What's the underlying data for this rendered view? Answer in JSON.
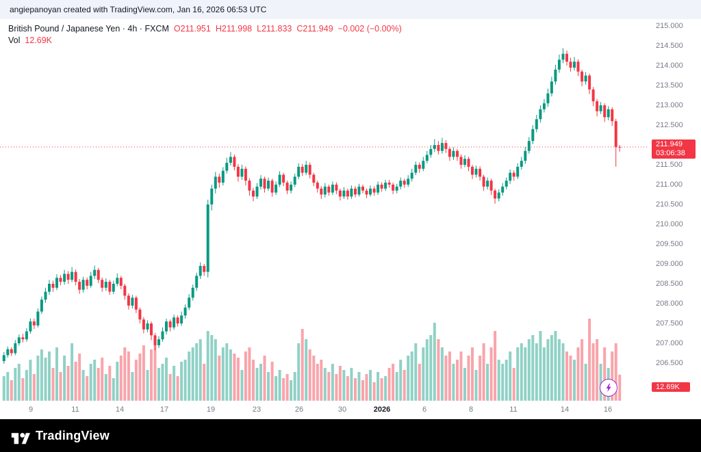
{
  "attribution": {
    "text": "angiepanoyan created with TradingView.com, Jan 16, 2026 06:53 UTC"
  },
  "legend": {
    "symbol_line": "British Pound / Japanese Yen · 4h · FXCM",
    "ohlc": {
      "o": "O211.951",
      "h": "H211.998",
      "l": "L211.833",
      "c": "C211.949",
      "change": "−0.002 (−0.00%)"
    },
    "vol_label": "Vol",
    "vol_value": "12.69K"
  },
  "badges": {
    "last_price": "211.949",
    "countdown": "03:06:38",
    "volume": "12.69K"
  },
  "footer": {
    "brand": "TradingView"
  },
  "colors": {
    "up": "#089981",
    "down": "#f23645",
    "up_vol": "rgba(8,153,129,0.45)",
    "down_vol": "rgba(242,54,69,0.45)",
    "axis_text": "#787b86",
    "badge_bg": "#f23645",
    "lightning": "#a724d1"
  },
  "price_axis": [
    "215.000",
    "214.500",
    "214.000",
    "213.500",
    "213.000",
    "212.500",
    "212.000",
    "211.500",
    "211.000",
    "210.500",
    "210.000",
    "209.500",
    "209.000",
    "208.500",
    "208.000",
    "207.500",
    "207.000",
    "206.500"
  ],
  "time_axis": [
    {
      "label": "9",
      "f": 0.048
    },
    {
      "label": "11",
      "f": 0.116
    },
    {
      "label": "14",
      "f": 0.185
    },
    {
      "label": "17",
      "f": 0.254
    },
    {
      "label": "19",
      "f": 0.326
    },
    {
      "label": "23",
      "f": 0.396
    },
    {
      "label": "26",
      "f": 0.462
    },
    {
      "label": "30",
      "f": 0.529
    },
    {
      "label": "2026",
      "f": 0.59,
      "bold": true
    },
    {
      "label": "6",
      "f": 0.655
    },
    {
      "label": "8",
      "f": 0.727
    },
    {
      "label": "11",
      "f": 0.793
    },
    {
      "label": "14",
      "f": 0.872
    },
    {
      "label": "16",
      "f": 0.939
    }
  ],
  "chart_data": {
    "type": "candlestick",
    "title": "British Pound / Japanese Yen",
    "interval": "4h",
    "exchange": "FXCM",
    "last_price": 211.949,
    "open": 211.951,
    "high": 211.998,
    "low": 211.833,
    "close": 211.949,
    "change": -0.002,
    "change_pct": -0.0,
    "volume_last": 12.69,
    "ylim": [
      206.5,
      215.0
    ],
    "x_span": "Dec 8 2025 – Jan 16 2026, 4-hour candles",
    "candles_format": [
      "open",
      "high",
      "low",
      "close",
      "volume_k"
    ],
    "candles": [
      [
        206.55,
        206.78,
        206.48,
        206.7,
        12
      ],
      [
        206.7,
        206.92,
        206.64,
        206.85,
        14
      ],
      [
        206.85,
        206.9,
        206.68,
        206.75,
        10
      ],
      [
        206.75,
        207.08,
        206.7,
        207.0,
        16
      ],
      [
        207.0,
        207.22,
        206.94,
        207.15,
        18
      ],
      [
        207.15,
        207.24,
        207.02,
        207.1,
        11
      ],
      [
        207.1,
        207.38,
        207.04,
        207.3,
        15
      ],
      [
        207.3,
        207.63,
        207.24,
        207.55,
        20
      ],
      [
        207.55,
        207.62,
        207.36,
        207.45,
        13
      ],
      [
        207.45,
        207.88,
        207.4,
        207.8,
        22
      ],
      [
        207.8,
        208.18,
        207.74,
        208.1,
        25
      ],
      [
        208.1,
        208.4,
        208.02,
        208.3,
        21
      ],
      [
        208.3,
        208.6,
        208.22,
        208.5,
        24
      ],
      [
        208.5,
        208.58,
        208.3,
        208.4,
        16
      ],
      [
        208.4,
        208.74,
        208.34,
        208.65,
        26
      ],
      [
        208.65,
        208.72,
        208.46,
        208.55,
        14
      ],
      [
        208.55,
        208.85,
        208.48,
        208.75,
        22
      ],
      [
        208.75,
        208.82,
        208.5,
        208.6,
        17
      ],
      [
        208.6,
        208.92,
        208.54,
        208.8,
        28
      ],
      [
        208.8,
        208.86,
        208.46,
        208.55,
        19
      ],
      [
        208.55,
        208.62,
        208.25,
        208.35,
        23
      ],
      [
        208.35,
        208.68,
        208.28,
        208.6,
        15
      ],
      [
        208.6,
        208.66,
        208.36,
        208.45,
        12
      ],
      [
        208.45,
        208.8,
        208.4,
        208.7,
        18
      ],
      [
        208.7,
        208.96,
        208.62,
        208.85,
        20
      ],
      [
        208.85,
        208.9,
        208.52,
        208.6,
        16
      ],
      [
        208.6,
        208.66,
        208.3,
        208.4,
        21
      ],
      [
        208.4,
        208.64,
        208.32,
        208.55,
        13
      ],
      [
        208.55,
        208.6,
        208.22,
        208.3,
        17
      ],
      [
        208.3,
        208.58,
        208.24,
        208.5,
        11
      ],
      [
        208.5,
        208.76,
        208.44,
        208.65,
        19
      ],
      [
        208.65,
        208.7,
        208.36,
        208.45,
        22
      ],
      [
        208.45,
        208.5,
        208.1,
        208.2,
        26
      ],
      [
        208.2,
        208.26,
        207.85,
        207.95,
        24
      ],
      [
        207.95,
        208.22,
        207.88,
        208.15,
        14
      ],
      [
        208.15,
        208.2,
        207.76,
        207.85,
        20
      ],
      [
        207.85,
        207.9,
        207.5,
        207.6,
        23
      ],
      [
        207.6,
        207.66,
        207.25,
        207.35,
        27
      ],
      [
        207.35,
        207.58,
        207.28,
        207.5,
        15
      ],
      [
        207.5,
        207.55,
        207.08,
        207.2,
        25
      ],
      [
        207.2,
        207.26,
        206.82,
        206.95,
        29
      ],
      [
        206.95,
        207.18,
        206.88,
        207.1,
        16
      ],
      [
        207.1,
        207.4,
        207.04,
        207.3,
        18
      ],
      [
        207.3,
        207.62,
        207.22,
        207.55,
        21
      ],
      [
        207.55,
        207.6,
        207.3,
        207.4,
        13
      ],
      [
        207.4,
        207.72,
        207.34,
        207.65,
        17
      ],
      [
        207.65,
        207.7,
        207.42,
        207.5,
        12
      ],
      [
        207.5,
        207.8,
        207.44,
        207.7,
        19
      ],
      [
        207.7,
        207.98,
        207.62,
        207.9,
        20
      ],
      [
        207.9,
        208.24,
        207.84,
        208.15,
        24
      ],
      [
        208.15,
        208.48,
        208.08,
        208.4,
        26
      ],
      [
        208.4,
        208.78,
        208.32,
        208.7,
        28
      ],
      [
        208.7,
        209.04,
        208.62,
        208.95,
        30
      ],
      [
        208.95,
        209.0,
        208.7,
        208.8,
        18
      ],
      [
        208.8,
        210.62,
        208.66,
        210.5,
        34
      ],
      [
        210.5,
        211.0,
        210.35,
        210.9,
        32
      ],
      [
        210.9,
        211.32,
        210.78,
        211.2,
        30
      ],
      [
        211.2,
        211.28,
        210.92,
        211.05,
        22
      ],
      [
        211.05,
        211.44,
        210.98,
        211.35,
        26
      ],
      [
        211.35,
        211.68,
        211.28,
        211.55,
        28
      ],
      [
        211.55,
        211.82,
        211.48,
        211.7,
        25
      ],
      [
        211.7,
        211.76,
        211.36,
        211.45,
        23
      ],
      [
        211.45,
        211.52,
        211.08,
        211.2,
        21
      ],
      [
        211.2,
        211.5,
        211.12,
        211.4,
        15
      ],
      [
        211.4,
        211.46,
        210.98,
        211.1,
        24
      ],
      [
        211.1,
        211.16,
        210.72,
        210.85,
        26
      ],
      [
        210.85,
        210.92,
        210.58,
        210.7,
        20
      ],
      [
        210.7,
        211.04,
        210.64,
        210.95,
        16
      ],
      [
        210.95,
        211.24,
        210.88,
        211.15,
        18
      ],
      [
        211.15,
        211.2,
        210.8,
        210.9,
        22
      ],
      [
        210.9,
        211.18,
        210.84,
        211.1,
        14
      ],
      [
        211.1,
        211.15,
        210.7,
        210.8,
        19
      ],
      [
        210.8,
        211.08,
        210.74,
        211.0,
        12
      ],
      [
        211.0,
        211.34,
        210.94,
        211.25,
        15
      ],
      [
        211.25,
        211.3,
        210.96,
        211.05,
        11
      ],
      [
        211.05,
        211.1,
        210.76,
        210.85,
        13
      ],
      [
        210.85,
        211.08,
        210.78,
        211.0,
        10
      ],
      [
        211.0,
        211.28,
        210.94,
        211.2,
        14
      ],
      [
        211.2,
        211.54,
        211.14,
        211.45,
        28
      ],
      [
        211.45,
        211.52,
        211.22,
        211.3,
        35
      ],
      [
        211.3,
        211.6,
        211.24,
        211.5,
        30
      ],
      [
        211.5,
        211.56,
        211.16,
        211.25,
        25
      ],
      [
        211.25,
        211.3,
        210.96,
        211.05,
        22
      ],
      [
        211.05,
        211.1,
        210.8,
        210.9,
        18
      ],
      [
        210.9,
        210.96,
        210.64,
        210.75,
        20
      ],
      [
        210.75,
        211.04,
        210.68,
        210.95,
        16
      ],
      [
        210.95,
        211.0,
        210.72,
        210.8,
        14
      ],
      [
        210.8,
        211.08,
        210.74,
        211.0,
        18
      ],
      [
        211.0,
        211.06,
        210.76,
        210.85,
        13
      ],
      [
        210.85,
        210.9,
        210.6,
        210.7,
        17
      ],
      [
        210.7,
        210.94,
        210.64,
        210.85,
        15
      ],
      [
        210.85,
        210.9,
        210.62,
        210.7,
        12
      ],
      [
        210.7,
        210.98,
        210.64,
        210.9,
        16
      ],
      [
        210.9,
        210.96,
        210.68,
        210.75,
        11
      ],
      [
        210.75,
        211.02,
        210.7,
        210.95,
        14
      ],
      [
        210.95,
        211.0,
        210.78,
        210.85,
        10
      ],
      [
        210.85,
        210.9,
        210.66,
        210.75,
        13
      ],
      [
        210.75,
        210.98,
        210.7,
        210.9,
        15
      ],
      [
        210.9,
        210.96,
        210.72,
        210.8,
        9
      ],
      [
        210.8,
        211.08,
        210.74,
        211.0,
        14
      ],
      [
        211.0,
        211.06,
        210.82,
        210.9,
        11
      ],
      [
        210.9,
        211.12,
        210.84,
        211.05,
        12
      ],
      [
        211.05,
        211.12,
        210.92,
        211.0,
        16
      ],
      [
        211.0,
        211.05,
        210.76,
        210.85,
        18
      ],
      [
        210.85,
        211.02,
        210.78,
        210.95,
        14
      ],
      [
        210.95,
        211.18,
        210.88,
        211.1,
        20
      ],
      [
        211.1,
        211.15,
        210.92,
        211.0,
        15
      ],
      [
        211.0,
        211.24,
        210.94,
        211.15,
        22
      ],
      [
        211.15,
        211.4,
        211.08,
        211.3,
        24
      ],
      [
        211.3,
        211.58,
        211.24,
        211.5,
        28
      ],
      [
        211.5,
        211.56,
        211.3,
        211.4,
        18
      ],
      [
        211.4,
        211.7,
        211.34,
        211.6,
        26
      ],
      [
        211.6,
        211.85,
        211.54,
        211.75,
        30
      ],
      [
        211.75,
        212.0,
        211.68,
        211.9,
        32
      ],
      [
        211.9,
        212.15,
        211.82,
        212.0,
        38
      ],
      [
        212.0,
        212.1,
        211.76,
        211.85,
        30
      ],
      [
        211.85,
        212.18,
        211.78,
        212.05,
        26
      ],
      [
        212.05,
        212.12,
        211.8,
        211.9,
        22
      ],
      [
        211.9,
        211.95,
        211.6,
        211.7,
        24
      ],
      [
        211.7,
        211.94,
        211.62,
        211.85,
        18
      ],
      [
        211.85,
        211.9,
        211.6,
        211.7,
        20
      ],
      [
        211.7,
        211.76,
        211.4,
        211.5,
        24
      ],
      [
        211.5,
        211.74,
        211.44,
        211.65,
        16
      ],
      [
        211.65,
        211.7,
        211.34,
        211.45,
        22
      ],
      [
        211.45,
        211.5,
        211.14,
        211.25,
        26
      ],
      [
        211.25,
        211.48,
        211.18,
        211.4,
        15
      ],
      [
        211.4,
        211.46,
        211.1,
        211.2,
        22
      ],
      [
        211.2,
        211.25,
        210.84,
        210.95,
        28
      ],
      [
        210.95,
        211.18,
        210.88,
        211.1,
        18
      ],
      [
        211.1,
        211.15,
        210.74,
        210.85,
        26
      ],
      [
        210.85,
        210.9,
        210.52,
        210.65,
        34
      ],
      [
        210.65,
        210.88,
        210.58,
        210.8,
        20
      ],
      [
        210.8,
        211.04,
        210.72,
        210.95,
        18
      ],
      [
        210.95,
        211.18,
        210.88,
        211.1,
        20
      ],
      [
        211.1,
        211.38,
        211.02,
        211.3,
        24
      ],
      [
        211.3,
        211.36,
        211.1,
        211.2,
        16
      ],
      [
        211.2,
        211.54,
        211.14,
        211.45,
        26
      ],
      [
        211.45,
        211.7,
        211.38,
        211.6,
        28
      ],
      [
        211.6,
        211.95,
        211.52,
        211.85,
        26
      ],
      [
        211.85,
        212.2,
        211.78,
        212.1,
        30
      ],
      [
        212.1,
        212.5,
        212.02,
        212.4,
        32
      ],
      [
        212.4,
        212.76,
        212.32,
        212.65,
        28
      ],
      [
        212.65,
        213.0,
        212.56,
        212.9,
        34
      ],
      [
        212.9,
        213.16,
        212.82,
        213.05,
        26
      ],
      [
        213.05,
        213.42,
        212.96,
        213.3,
        30
      ],
      [
        213.3,
        213.72,
        213.22,
        213.6,
        32
      ],
      [
        213.6,
        214.02,
        213.52,
        213.9,
        34
      ],
      [
        213.9,
        214.28,
        213.82,
        214.15,
        30
      ],
      [
        214.15,
        214.44,
        214.06,
        214.3,
        28
      ],
      [
        214.3,
        214.38,
        214.0,
        214.1,
        24
      ],
      [
        214.1,
        214.2,
        213.85,
        213.95,
        22
      ],
      [
        213.95,
        214.22,
        213.88,
        214.1,
        20
      ],
      [
        214.1,
        214.16,
        213.74,
        213.85,
        26
      ],
      [
        213.85,
        213.9,
        213.48,
        213.6,
        30
      ],
      [
        213.6,
        213.84,
        213.52,
        213.75,
        18
      ],
      [
        213.75,
        213.8,
        213.28,
        213.4,
        40
      ],
      [
        213.4,
        213.46,
        212.98,
        213.1,
        28
      ],
      [
        213.1,
        213.16,
        212.72,
        212.85,
        30
      ],
      [
        212.85,
        213.08,
        212.78,
        213.0,
        18
      ],
      [
        213.0,
        213.05,
        212.58,
        212.7,
        26
      ],
      [
        212.7,
        212.98,
        212.62,
        212.9,
        16
      ],
      [
        212.9,
        212.95,
        212.48,
        212.6,
        24
      ],
      [
        212.6,
        212.66,
        211.45,
        211.95,
        28
      ],
      [
        211.951,
        211.998,
        211.833,
        211.949,
        12.69
      ]
    ]
  }
}
